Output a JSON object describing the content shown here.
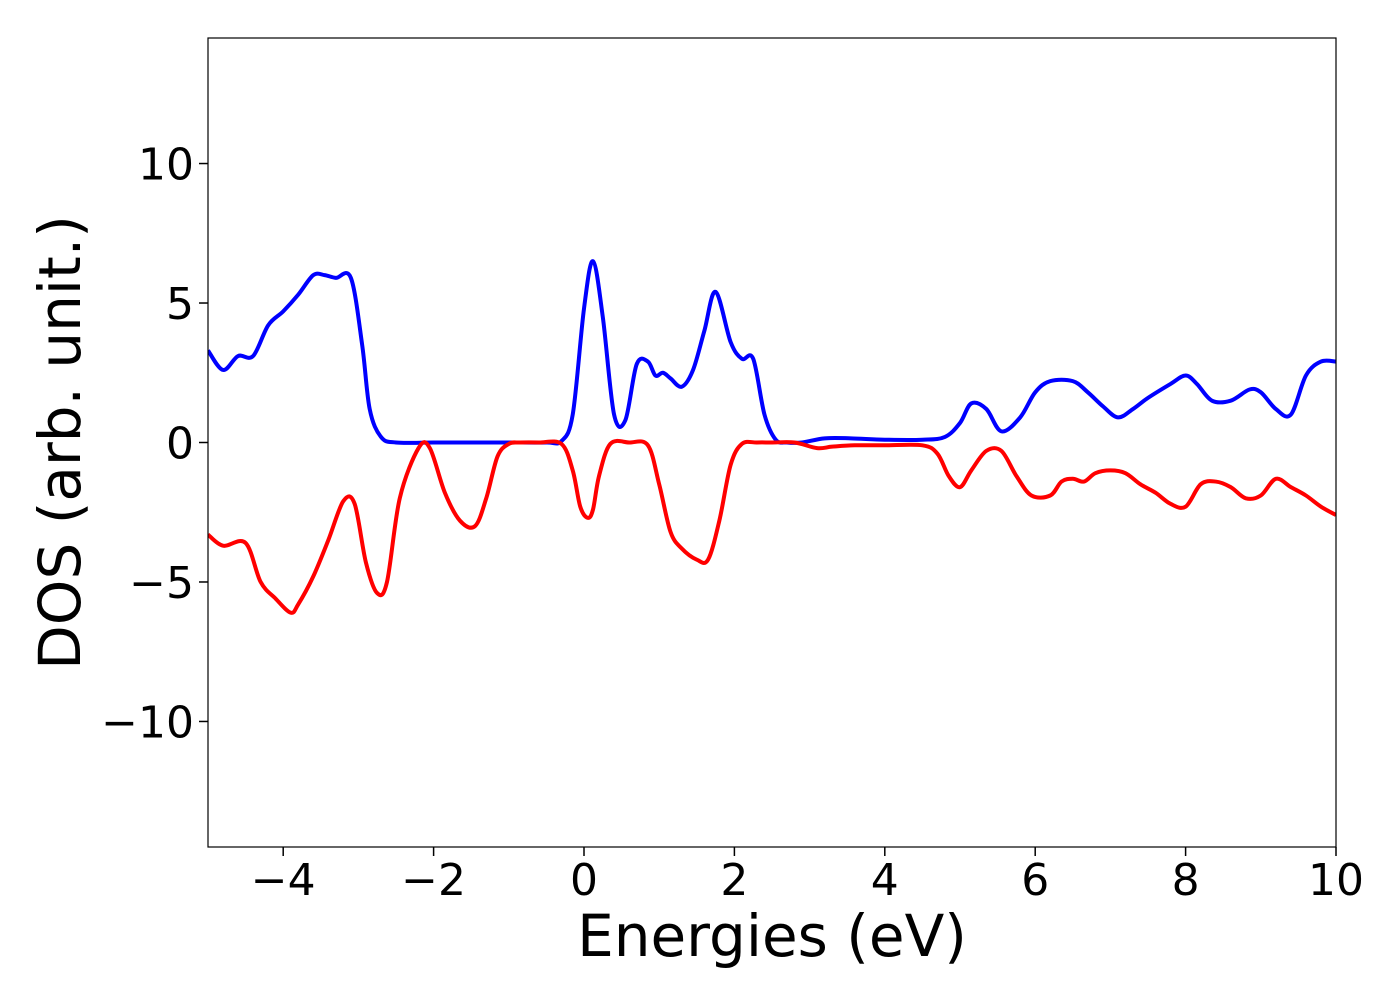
{
  "chart_data": {
    "type": "line",
    "title": "",
    "xlabel": "Energies (eV)",
    "ylabel": "DOS (arb. unit.)",
    "xlim": [
      -5,
      10
    ],
    "ylim": [
      -14.5,
      14.5
    ],
    "xticks": [
      -4,
      -2,
      0,
      2,
      4,
      6,
      8,
      10
    ],
    "xtick_labels": [
      "−4",
      "−2",
      "0",
      "2",
      "4",
      "6",
      "8",
      "10"
    ],
    "yticks": [
      -10,
      -5,
      0,
      5,
      10
    ],
    "ytick_labels": [
      "−10",
      "−5",
      "0",
      "5",
      "10"
    ],
    "grid": false,
    "legend": "none",
    "series": [
      {
        "color": "#0000ff",
        "x": [
          -5.0,
          -4.8,
          -4.6,
          -4.4,
          -4.2,
          -4.0,
          -3.8,
          -3.6,
          -3.45,
          -3.3,
          -3.1,
          -2.95,
          -2.85,
          -2.7,
          -2.5,
          -2.0,
          -1.5,
          -1.0,
          -0.5,
          -0.3,
          -0.15,
          0.0,
          0.12,
          0.25,
          0.4,
          0.55,
          0.7,
          0.85,
          0.95,
          1.05,
          1.15,
          1.3,
          1.45,
          1.6,
          1.75,
          1.95,
          2.1,
          2.25,
          2.4,
          2.55,
          2.7,
          2.9,
          3.2,
          3.55,
          4.0,
          4.5,
          4.8,
          5.0,
          5.15,
          5.35,
          5.55,
          5.8,
          6.0,
          6.2,
          6.5,
          6.7,
          6.9,
          7.1,
          7.3,
          7.5,
          7.8,
          8.0,
          8.15,
          8.35,
          8.6,
          8.85,
          9.0,
          9.2,
          9.4,
          9.6,
          9.8,
          10.0
        ],
        "y": [
          3.3,
          2.6,
          3.1,
          3.1,
          4.2,
          4.7,
          5.3,
          6.0,
          6.0,
          5.9,
          5.9,
          3.5,
          1.2,
          0.2,
          0.0,
          0.0,
          0.0,
          0.0,
          0.0,
          0.05,
          1.0,
          4.8,
          6.5,
          4.5,
          1.0,
          0.8,
          2.8,
          2.9,
          2.4,
          2.5,
          2.3,
          2.0,
          2.6,
          4.0,
          5.4,
          3.6,
          3.0,
          3.0,
          1.0,
          0.1,
          0.0,
          0.0,
          0.15,
          0.15,
          0.1,
          0.1,
          0.2,
          0.7,
          1.4,
          1.2,
          0.4,
          0.9,
          1.8,
          2.2,
          2.2,
          1.8,
          1.3,
          0.9,
          1.2,
          1.6,
          2.1,
          2.4,
          2.1,
          1.5,
          1.5,
          1.9,
          1.8,
          1.2,
          1.0,
          2.4,
          2.9,
          2.9
        ]
      },
      {
        "color": "#ff0000",
        "x": [
          -5.0,
          -4.8,
          -4.5,
          -4.3,
          -4.1,
          -3.9,
          -3.8,
          -3.6,
          -3.4,
          -3.2,
          -3.05,
          -2.9,
          -2.75,
          -2.62,
          -2.45,
          -2.2,
          -2.05,
          -1.85,
          -1.65,
          -1.45,
          -1.3,
          -1.15,
          -1.0,
          -0.85,
          -0.6,
          -0.3,
          -0.15,
          -0.05,
          0.05,
          0.12,
          0.2,
          0.35,
          0.6,
          0.85,
          1.0,
          1.15,
          1.3,
          1.5,
          1.65,
          1.8,
          1.95,
          2.1,
          2.3,
          2.5,
          2.8,
          3.1,
          3.3,
          3.6,
          4.0,
          4.5,
          4.7,
          4.85,
          5.0,
          5.15,
          5.35,
          5.55,
          5.75,
          5.95,
          6.2,
          6.35,
          6.5,
          6.65,
          6.8,
          7.0,
          7.2,
          7.4,
          7.6,
          7.8,
          8.0,
          8.2,
          8.4,
          8.6,
          8.8,
          9.0,
          9.2,
          9.4,
          9.6,
          9.8,
          10.0
        ],
        "y": [
          -3.3,
          -3.7,
          -3.6,
          -5.0,
          -5.6,
          -6.1,
          -5.8,
          -4.8,
          -3.5,
          -2.1,
          -2.2,
          -4.3,
          -5.4,
          -5.0,
          -2.0,
          -0.2,
          -0.2,
          -1.8,
          -2.8,
          -3.0,
          -2.0,
          -0.5,
          -0.05,
          0.0,
          0.0,
          -0.05,
          -1.0,
          -2.3,
          -2.7,
          -2.4,
          -1.2,
          -0.05,
          0.0,
          -0.1,
          -1.5,
          -3.2,
          -3.8,
          -4.2,
          -4.2,
          -2.8,
          -0.8,
          -0.05,
          0.0,
          0.0,
          0.0,
          -0.2,
          -0.15,
          -0.1,
          -0.1,
          -0.1,
          -0.4,
          -1.2,
          -1.6,
          -1.0,
          -0.3,
          -0.3,
          -1.2,
          -1.9,
          -1.9,
          -1.4,
          -1.3,
          -1.4,
          -1.1,
          -1.0,
          -1.1,
          -1.5,
          -1.8,
          -2.2,
          -2.3,
          -1.5,
          -1.4,
          -1.6,
          -2.0,
          -1.9,
          -1.3,
          -1.6,
          -1.9,
          -2.3,
          -2.6
        ]
      }
    ]
  }
}
